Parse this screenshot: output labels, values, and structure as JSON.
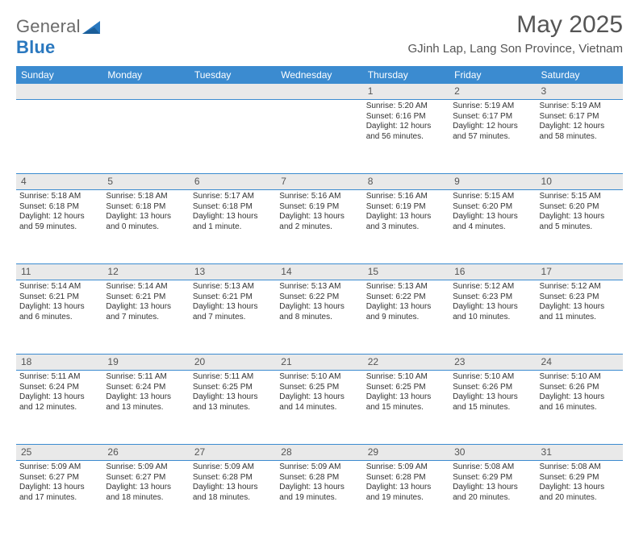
{
  "brand": {
    "part1": "General",
    "part2": "Blue"
  },
  "title": "May 2025",
  "location": "GJinh Lap, Lang Son Province, Vietnam",
  "colors": {
    "header_bg": "#3b8bd0",
    "header_text": "#ffffff",
    "daynum_bg": "#e9e9e9",
    "rule": "#3b8bd0",
    "brand_gray": "#6b6b6b",
    "brand_blue": "#2a78bf",
    "body_text": "#333333",
    "page_bg": "#ffffff"
  },
  "fonts": {
    "month_size_pt": 22,
    "location_size_pt": 11,
    "weekday_size_pt": 9,
    "daynum_size_pt": 9,
    "body_size_pt": 7.5
  },
  "weekdays": [
    "Sunday",
    "Monday",
    "Tuesday",
    "Wednesday",
    "Thursday",
    "Friday",
    "Saturday"
  ],
  "weeks": [
    [
      null,
      null,
      null,
      null,
      {
        "n": "1",
        "sunrise": "5:20 AM",
        "sunset": "6:16 PM",
        "daylight": "12 hours and 56 minutes."
      },
      {
        "n": "2",
        "sunrise": "5:19 AM",
        "sunset": "6:17 PM",
        "daylight": "12 hours and 57 minutes."
      },
      {
        "n": "3",
        "sunrise": "5:19 AM",
        "sunset": "6:17 PM",
        "daylight": "12 hours and 58 minutes."
      }
    ],
    [
      {
        "n": "4",
        "sunrise": "5:18 AM",
        "sunset": "6:18 PM",
        "daylight": "12 hours and 59 minutes."
      },
      {
        "n": "5",
        "sunrise": "5:18 AM",
        "sunset": "6:18 PM",
        "daylight": "13 hours and 0 minutes."
      },
      {
        "n": "6",
        "sunrise": "5:17 AM",
        "sunset": "6:18 PM",
        "daylight": "13 hours and 1 minute."
      },
      {
        "n": "7",
        "sunrise": "5:16 AM",
        "sunset": "6:19 PM",
        "daylight": "13 hours and 2 minutes."
      },
      {
        "n": "8",
        "sunrise": "5:16 AM",
        "sunset": "6:19 PM",
        "daylight": "13 hours and 3 minutes."
      },
      {
        "n": "9",
        "sunrise": "5:15 AM",
        "sunset": "6:20 PM",
        "daylight": "13 hours and 4 minutes."
      },
      {
        "n": "10",
        "sunrise": "5:15 AM",
        "sunset": "6:20 PM",
        "daylight": "13 hours and 5 minutes."
      }
    ],
    [
      {
        "n": "11",
        "sunrise": "5:14 AM",
        "sunset": "6:21 PM",
        "daylight": "13 hours and 6 minutes."
      },
      {
        "n": "12",
        "sunrise": "5:14 AM",
        "sunset": "6:21 PM",
        "daylight": "13 hours and 7 minutes."
      },
      {
        "n": "13",
        "sunrise": "5:13 AM",
        "sunset": "6:21 PM",
        "daylight": "13 hours and 7 minutes."
      },
      {
        "n": "14",
        "sunrise": "5:13 AM",
        "sunset": "6:22 PM",
        "daylight": "13 hours and 8 minutes."
      },
      {
        "n": "15",
        "sunrise": "5:13 AM",
        "sunset": "6:22 PM",
        "daylight": "13 hours and 9 minutes."
      },
      {
        "n": "16",
        "sunrise": "5:12 AM",
        "sunset": "6:23 PM",
        "daylight": "13 hours and 10 minutes."
      },
      {
        "n": "17",
        "sunrise": "5:12 AM",
        "sunset": "6:23 PM",
        "daylight": "13 hours and 11 minutes."
      }
    ],
    [
      {
        "n": "18",
        "sunrise": "5:11 AM",
        "sunset": "6:24 PM",
        "daylight": "13 hours and 12 minutes."
      },
      {
        "n": "19",
        "sunrise": "5:11 AM",
        "sunset": "6:24 PM",
        "daylight": "13 hours and 13 minutes."
      },
      {
        "n": "20",
        "sunrise": "5:11 AM",
        "sunset": "6:25 PM",
        "daylight": "13 hours and 13 minutes."
      },
      {
        "n": "21",
        "sunrise": "5:10 AM",
        "sunset": "6:25 PM",
        "daylight": "13 hours and 14 minutes."
      },
      {
        "n": "22",
        "sunrise": "5:10 AM",
        "sunset": "6:25 PM",
        "daylight": "13 hours and 15 minutes."
      },
      {
        "n": "23",
        "sunrise": "5:10 AM",
        "sunset": "6:26 PM",
        "daylight": "13 hours and 15 minutes."
      },
      {
        "n": "24",
        "sunrise": "5:10 AM",
        "sunset": "6:26 PM",
        "daylight": "13 hours and 16 minutes."
      }
    ],
    [
      {
        "n": "25",
        "sunrise": "5:09 AM",
        "sunset": "6:27 PM",
        "daylight": "13 hours and 17 minutes."
      },
      {
        "n": "26",
        "sunrise": "5:09 AM",
        "sunset": "6:27 PM",
        "daylight": "13 hours and 18 minutes."
      },
      {
        "n": "27",
        "sunrise": "5:09 AM",
        "sunset": "6:28 PM",
        "daylight": "13 hours and 18 minutes."
      },
      {
        "n": "28",
        "sunrise": "5:09 AM",
        "sunset": "6:28 PM",
        "daylight": "13 hours and 19 minutes."
      },
      {
        "n": "29",
        "sunrise": "5:09 AM",
        "sunset": "6:28 PM",
        "daylight": "13 hours and 19 minutes."
      },
      {
        "n": "30",
        "sunrise": "5:08 AM",
        "sunset": "6:29 PM",
        "daylight": "13 hours and 20 minutes."
      },
      {
        "n": "31",
        "sunrise": "5:08 AM",
        "sunset": "6:29 PM",
        "daylight": "13 hours and 20 minutes."
      }
    ]
  ],
  "labels": {
    "sunrise": "Sunrise: ",
    "sunset": "Sunset: ",
    "daylight": "Daylight: "
  }
}
